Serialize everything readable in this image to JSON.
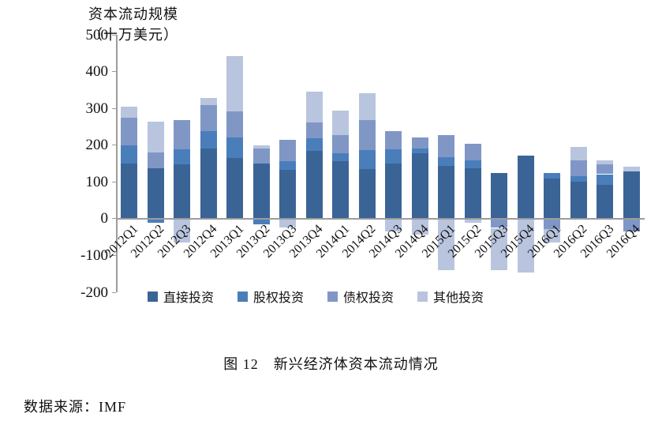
{
  "chart_data": {
    "type": "bar",
    "stacked": true,
    "title_line1": "资本流动规模",
    "title_line2": "（十万美元）",
    "categories": [
      "2012Q1",
      "2012Q2",
      "2012Q3",
      "2012Q4",
      "2013Q1",
      "2013Q2",
      "2013Q3",
      "2013Q4",
      "2014Q1",
      "2014Q2",
      "2014Q3",
      "2014Q4",
      "2015Q1",
      "2015Q2",
      "2015Q3",
      "2015Q4",
      "2016Q1",
      "2016Q2",
      "2016Q3",
      "2016Q4"
    ],
    "series": [
      {
        "name": "直接投资",
        "color": "#3b6496",
        "values": [
          150,
          138,
          148,
          190,
          165,
          150,
          132,
          184,
          157,
          134,
          150,
          178,
          143,
          137,
          124,
          171,
          109,
          100,
          91,
          128
        ]
      },
      {
        "name": "股权投资",
        "color": "#4a7ebb",
        "values": [
          49,
          -10,
          41,
          48,
          56,
          -15,
          25,
          34,
          21,
          52,
          38,
          13,
          25,
          21,
          0,
          0,
          16,
          16,
          30,
          0
        ]
      },
      {
        "name": "债权投资",
        "color": "#8097c6",
        "values": [
          76,
          43,
          79,
          70,
          71,
          40,
          57,
          43,
          50,
          82,
          51,
          30,
          59,
          45,
          -25,
          0,
          -29,
          43,
          27,
          -35
        ]
      },
      {
        "name": "其他投资",
        "color": "#b9c5de",
        "values": [
          30,
          82,
          -65,
          20,
          151,
          9,
          -25,
          84,
          66,
          74,
          -35,
          -43,
          -140,
          -11,
          -115,
          -147,
          -36,
          36,
          10,
          13
        ]
      }
    ],
    "ylim": [
      -200,
      500
    ],
    "y_ticks": [
      500,
      400,
      300,
      200,
      100,
      0,
      -100,
      -200
    ],
    "grid": false,
    "legend_position": "bottom",
    "axis_color": "#9c9c9c"
  },
  "caption": "图 12　新兴经济体资本流动情况",
  "source": "数据来源：IMF"
}
